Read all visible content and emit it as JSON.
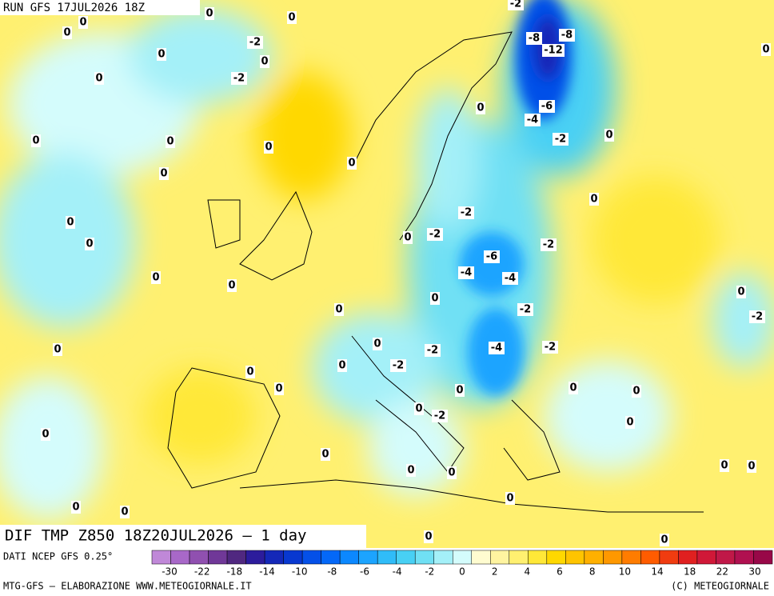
{
  "header": {
    "run": "RUN GFS 17JUL2026 18Z"
  },
  "footer": {
    "title": "DIF TMP Z850 18Z20JUL2026 – 1 day",
    "source": "DATI NCEP GFS 0.25°",
    "credit": "MTG-GFS – ELABORAZIONE WWW.METEOGIORNALE.IT",
    "copyright": "(C) METEOGIORNALE"
  },
  "colorbar": {
    "colors": [
      "#c088d8",
      "#a868c8",
      "#9050b0",
      "#703898",
      "#502880",
      "#2c1c9c",
      "#1428b8",
      "#0838d0",
      "#0450e8",
      "#0468f8",
      "#0c88ff",
      "#1ca4ff",
      "#30bcf8",
      "#48d0f4",
      "#70e0f4",
      "#a4f0f8",
      "#d4fcfc",
      "#fffcd0",
      "#fff4a0",
      "#fff070",
      "#ffe838",
      "#ffd800",
      "#ffc400",
      "#ffb000",
      "#ff9800",
      "#ff7c00",
      "#ff5c00",
      "#f03c10",
      "#e02020",
      "#d01838",
      "#c01848",
      "#b01050",
      "#980848"
    ],
    "labels": [
      -30,
      -22,
      -18,
      -14,
      -10,
      -8,
      -6,
      -4,
      -2,
      0,
      2,
      4,
      6,
      8,
      10,
      14,
      18,
      22,
      30
    ]
  },
  "map": {
    "labels": [
      0,
      0,
      0,
      0,
      -2,
      -8,
      -8,
      -12,
      -2,
      0,
      0,
      0,
      0,
      -2,
      0,
      -6,
      -4,
      0,
      -2,
      0,
      0,
      0,
      0,
      0,
      0,
      -2,
      -2,
      0,
      -2,
      0,
      0,
      -6,
      -4,
      -4,
      0,
      0,
      0,
      0,
      -2,
      0,
      -2,
      0,
      0,
      -2,
      -4,
      -2,
      0,
      -2,
      0,
      0,
      0,
      0,
      0,
      -2,
      0,
      0,
      0,
      0,
      0,
      0,
      0,
      0,
      0,
      0,
      0,
      0,
      0
    ]
  }
}
